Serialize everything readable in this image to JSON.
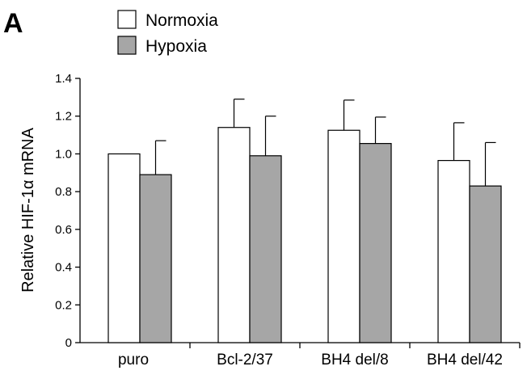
{
  "panel_label": "A",
  "chart_data": {
    "type": "bar",
    "title": "",
    "xlabel": "",
    "ylabel": "Relative HIF-1α mRNA",
    "ylim": [
      0,
      1.4
    ],
    "yticks": [
      "0",
      "0.2",
      "0.4",
      "0.6",
      "0.8",
      "1.0",
      "1.2",
      "1.4"
    ],
    "categories": [
      "puro",
      "Bcl-2/37",
      "BH4 del/8",
      "BH4 del/42"
    ],
    "legend_position": "top-left",
    "grid": false,
    "series": [
      {
        "name": "Normoxia",
        "color": "#ffffff",
        "values": [
          1.0,
          1.14,
          1.125,
          0.965
        ],
        "error": [
          0.0,
          0.15,
          0.16,
          0.2
        ]
      },
      {
        "name": "Hypoxia",
        "color": "#a6a6a6",
        "values": [
          0.89,
          0.99,
          1.055,
          0.83
        ],
        "error": [
          0.18,
          0.21,
          0.14,
          0.23
        ]
      }
    ]
  }
}
